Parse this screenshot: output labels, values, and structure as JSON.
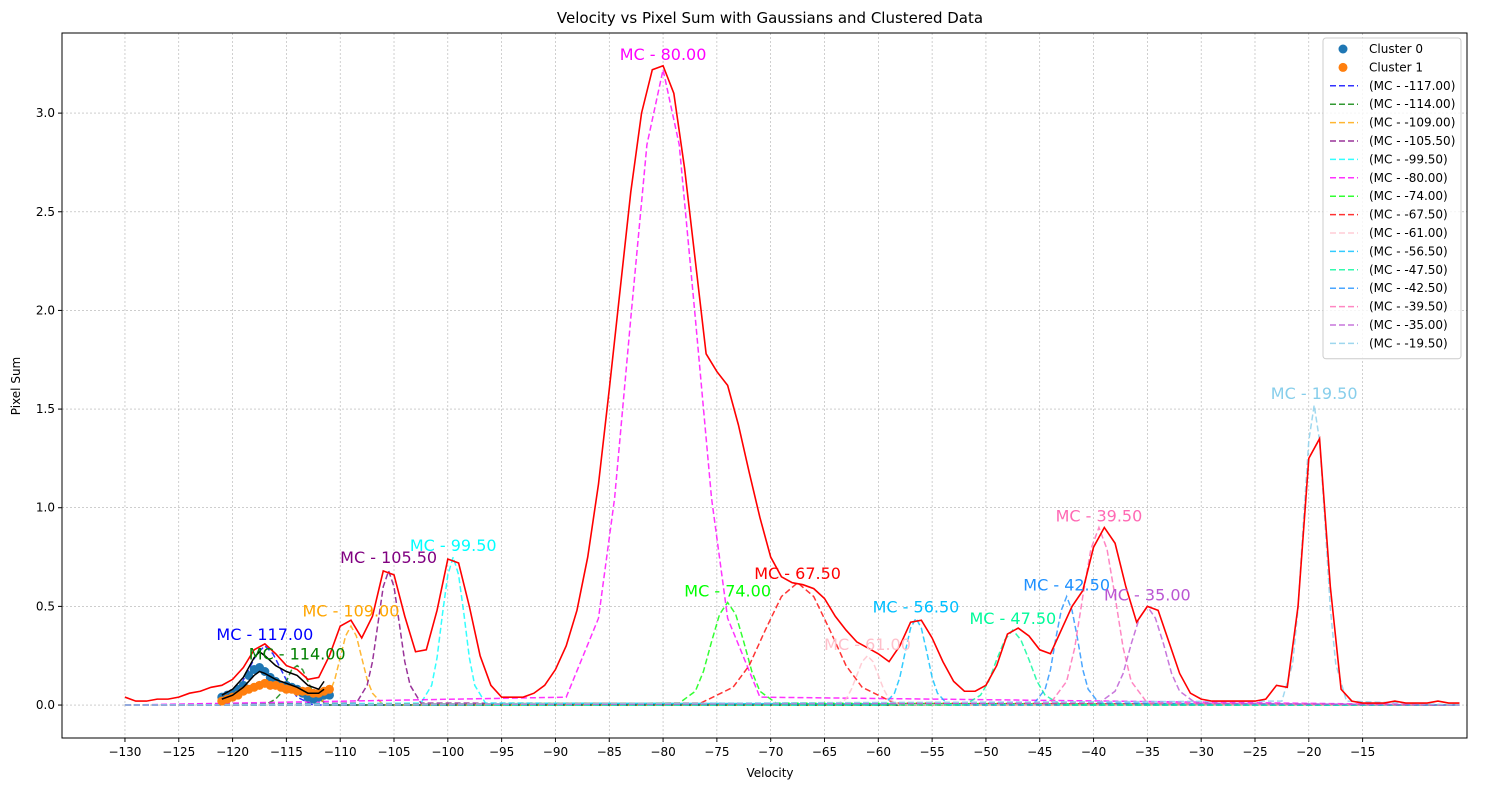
{
  "chart_data": {
    "type": "line",
    "title": "Velocity vs Pixel Sum with Gaussians and Clustered Data",
    "xlabel": "Velocity",
    "ylabel": "Pixel Sum",
    "xlim": [
      -135.85,
      -5.3
    ],
    "ylim": [
      -0.167,
      3.406
    ],
    "grid": true,
    "legend": "upper right",
    "xticks": [
      {
        "value": -130,
        "label": "−130"
      },
      {
        "value": -125,
        "label": "−125"
      },
      {
        "value": -120,
        "label": "−120"
      },
      {
        "value": -115,
        "label": "−115"
      },
      {
        "value": -110,
        "label": "−110"
      },
      {
        "value": -105,
        "label": "−105"
      },
      {
        "value": -100,
        "label": "−100"
      },
      {
        "value": -95,
        "label": "−95"
      },
      {
        "value": -90,
        "label": "−90"
      },
      {
        "value": -85,
        "label": "−85"
      },
      {
        "value": -80,
        "label": "−80"
      },
      {
        "value": -75,
        "label": "−75"
      },
      {
        "value": -70,
        "label": "−70"
      },
      {
        "value": -65,
        "label": "−65"
      },
      {
        "value": -60,
        "label": "−60"
      },
      {
        "value": -55,
        "label": "−55"
      },
      {
        "value": -50,
        "label": "−50"
      },
      {
        "value": -45,
        "label": "−45"
      },
      {
        "value": -40,
        "label": "−40"
      },
      {
        "value": -35,
        "label": "−35"
      },
      {
        "value": -30,
        "label": "−30"
      },
      {
        "value": -25,
        "label": "−25"
      },
      {
        "value": -20,
        "label": "−20"
      },
      {
        "value": -15,
        "label": "−15"
      }
    ],
    "yticks": [
      {
        "value": 0,
        "label": "0.0"
      },
      0.5,
      {
        "value": 1,
        "label": "1.0"
      },
      1.5,
      {
        "value": 2,
        "label": "2.0"
      },
      2.5,
      {
        "value": 3,
        "label": "3.0"
      }
    ],
    "scatter": [
      {
        "name": "Cluster 0",
        "color": "#1f77b4",
        "x": [
          -121,
          -120.5,
          -120,
          -119.5,
          -119,
          -118.5,
          -118,
          -117.5,
          -117,
          -116.5,
          -116,
          -115.5,
          -115,
          -114.5,
          -114,
          -113.5,
          -113,
          -112.5,
          -112,
          -111.5,
          -111
        ],
        "values": [
          0.04,
          0.05,
          0.06,
          0.08,
          0.1,
          0.15,
          0.18,
          0.19,
          0.17,
          0.14,
          0.12,
          0.1,
          0.1,
          0.09,
          0.08,
          0.06,
          0.04,
          0.03,
          0.04,
          0.05,
          0.05
        ]
      },
      {
        "name": "Cluster 1",
        "color": "#ff7f0e",
        "x": [
          -121,
          -120.5,
          -120,
          -119.5,
          -119,
          -118.5,
          -118,
          -117.5,
          -117,
          -116.5,
          -116,
          -115.5,
          -115,
          -114.5,
          -114,
          -113.5,
          -113,
          -112.5,
          -112,
          -111.5,
          -111
        ],
        "values": [
          0.02,
          0.03,
          0.04,
          0.05,
          0.07,
          0.08,
          0.09,
          0.1,
          0.11,
          0.1,
          0.1,
          0.09,
          0.08,
          0.08,
          0.07,
          0.07,
          0.07,
          0.06,
          0.06,
          0.07,
          0.08
        ]
      }
    ],
    "fits": [
      {
        "color": "#000000",
        "x": [
          -121,
          -120,
          -119,
          -118,
          -117.5,
          -117,
          -116,
          -115,
          -114,
          -113,
          -112,
          -111.5
        ],
        "values": [
          0.05,
          0.08,
          0.14,
          0.24,
          0.27,
          0.25,
          0.2,
          0.17,
          0.15,
          0.1,
          0.08,
          0.12
        ]
      },
      {
        "color": "#000000",
        "x": [
          -121,
          -120,
          -119,
          -118,
          -117.5,
          -117,
          -116,
          -115,
          -114,
          -113,
          -112,
          -111.5
        ],
        "values": [
          0.03,
          0.05,
          0.09,
          0.15,
          0.17,
          0.16,
          0.13,
          0.11,
          0.09,
          0.06,
          0.06,
          0.08
        ]
      }
    ],
    "series": [
      {
        "name": "(MC - -117.00)",
        "color": "#0000ff",
        "x": [
          -130,
          -121.5,
          -120,
          -119.25,
          -118.5,
          -117.75,
          -117,
          -116.25,
          -115.5,
          -114.75,
          -114,
          -112.5,
          -6
        ],
        "values": [
          0,
          0,
          0.04,
          0.1,
          0.18,
          0.26,
          0.3,
          0.26,
          0.18,
          0.1,
          0.04,
          0,
          0
        ]
      },
      {
        "name": "(MC - -114.00)",
        "color": "#008000",
        "x": [
          -130,
          -117,
          -116,
          -115.5,
          -115,
          -114.5,
          -114,
          -113.5,
          -113,
          -112.5,
          -112,
          -111,
          -6
        ],
        "values": [
          0,
          0,
          0.03,
          0.06,
          0.12,
          0.18,
          0.2,
          0.18,
          0.12,
          0.06,
          0.03,
          0,
          0
        ]
      },
      {
        "name": "(MC - -109.00)",
        "color": "#ffa500",
        "x": [
          -130,
          -112,
          -111,
          -110.5,
          -110,
          -109.5,
          -109,
          -108.5,
          -108,
          -107.5,
          -107,
          -106,
          -6
        ],
        "values": [
          0,
          0,
          0.06,
          0.13,
          0.24,
          0.35,
          0.4,
          0.35,
          0.24,
          0.13,
          0.06,
          0,
          0
        ]
      },
      {
        "name": "(MC - -105.50)",
        "color": "#800080",
        "x": [
          -130,
          -108.5,
          -107.5,
          -107,
          -106.5,
          -106,
          -105.5,
          -105,
          -104.5,
          -104,
          -103.5,
          -102.5,
          -6
        ],
        "values": [
          0,
          0.01,
          0.1,
          0.22,
          0.41,
          0.6,
          0.68,
          0.6,
          0.41,
          0.22,
          0.1,
          0.01,
          0
        ]
      },
      {
        "name": "(MC - -99.50)",
        "color": "#00ffff",
        "x": [
          -130,
          -102.5,
          -101.5,
          -101,
          -100.5,
          -100,
          -99.5,
          -99,
          -98.5,
          -98,
          -97.5,
          -96.5,
          -6
        ],
        "values": [
          0,
          0.01,
          0.1,
          0.24,
          0.46,
          0.66,
          0.75,
          0.66,
          0.46,
          0.24,
          0.1,
          0.01,
          0
        ]
      },
      {
        "name": "(MC - -80.00)",
        "color": "#ff00ff",
        "x": [
          -130,
          -89,
          -86,
          -84.5,
          -83,
          -81.5,
          -80,
          -78.5,
          -77,
          -75.5,
          -74,
          -71,
          -6
        ],
        "values": [
          0,
          0.04,
          0.44,
          1.05,
          1.96,
          2.84,
          3.22,
          2.84,
          1.96,
          1.05,
          0.44,
          0.04,
          0
        ]
      },
      {
        "name": "(MC - -74.00)",
        "color": "#00ff00",
        "x": [
          -130,
          -78.5,
          -77,
          -76.25,
          -75.5,
          -74.75,
          -74,
          -73.25,
          -72.5,
          -71.75,
          -71,
          -69.5,
          -6
        ],
        "values": [
          0,
          0.01,
          0.07,
          0.17,
          0.32,
          0.46,
          0.52,
          0.46,
          0.32,
          0.17,
          0.07,
          0.01,
          0
        ]
      },
      {
        "name": "(MC - -67.50)",
        "color": "#ff0000",
        "x": [
          -130,
          -76.5,
          -73.5,
          -72,
          -70.5,
          -69,
          -67.5,
          -66,
          -64.5,
          -63,
          -61.5,
          -58.5,
          -6
        ],
        "values": [
          0,
          0.01,
          0.09,
          0.2,
          0.38,
          0.55,
          0.62,
          0.55,
          0.38,
          0.2,
          0.09,
          0.01,
          0
        ]
      },
      {
        "name": "(MC - -61.00)",
        "color": "#ffc0cb",
        "x": [
          -130,
          -64,
          -63,
          -62.5,
          -62,
          -61.5,
          -61,
          -60.5,
          -60,
          -59.5,
          -59,
          -58,
          -6
        ],
        "values": [
          0,
          0,
          0.03,
          0.08,
          0.15,
          0.22,
          0.25,
          0.22,
          0.15,
          0.08,
          0.03,
          0,
          0
        ]
      },
      {
        "name": "(MC - -56.50)",
        "color": "#00bfff",
        "x": [
          -130,
          -59.5,
          -58.5,
          -58,
          -57.5,
          -57,
          -56.5,
          -56,
          -55.5,
          -55,
          -54.5,
          -53.5,
          -6
        ],
        "values": [
          0,
          0,
          0.06,
          0.14,
          0.27,
          0.39,
          0.44,
          0.39,
          0.27,
          0.14,
          0.06,
          0,
          0
        ]
      },
      {
        "name": "(MC - -47.50)",
        "color": "#00fa9a",
        "x": [
          -130,
          -52,
          -50.5,
          -49.75,
          -49,
          -48.25,
          -47.5,
          -46.75,
          -46,
          -45.25,
          -44.5,
          -43,
          -6
        ],
        "values": [
          0,
          0,
          0.05,
          0.12,
          0.23,
          0.33,
          0.38,
          0.33,
          0.23,
          0.12,
          0.05,
          0,
          0
        ]
      },
      {
        "name": "(MC - -42.50)",
        "color": "#1e90ff",
        "x": [
          -130,
          -45.5,
          -44.5,
          -44,
          -43.5,
          -43,
          -42.5,
          -42,
          -41.5,
          -41,
          -40.5,
          -39.5,
          -6
        ],
        "values": [
          0,
          0.01,
          0.08,
          0.18,
          0.34,
          0.48,
          0.55,
          0.48,
          0.34,
          0.18,
          0.08,
          0.01,
          0
        ]
      },
      {
        "name": "(MC - -39.50)",
        "color": "#ff69b4",
        "x": [
          -130,
          -44,
          -42.5,
          -41.75,
          -41,
          -40.25,
          -39.5,
          -38.75,
          -38,
          -37.25,
          -36.5,
          -35,
          -6
        ],
        "values": [
          0,
          0.01,
          0.12,
          0.29,
          0.55,
          0.79,
          0.9,
          0.79,
          0.55,
          0.29,
          0.12,
          0.01,
          0
        ]
      },
      {
        "name": "(MC - -35.00)",
        "color": "#ba55d3",
        "x": [
          -130,
          -39.5,
          -38,
          -37.25,
          -36.5,
          -35.75,
          -35,
          -34.25,
          -33.5,
          -32.75,
          -32,
          -30.5,
          -6
        ],
        "values": [
          0,
          0.01,
          0.07,
          0.16,
          0.31,
          0.44,
          0.5,
          0.44,
          0.31,
          0.16,
          0.07,
          0.01,
          0
        ]
      },
      {
        "name": "(MC - -19.50)",
        "color": "#87ceeb",
        "x": [
          -130,
          -22.5,
          -21.5,
          -21,
          -20.5,
          -20,
          -19.5,
          -19,
          -18.5,
          -18,
          -17.5,
          -16.5,
          -6
        ],
        "values": [
          0,
          0.02,
          0.21,
          0.49,
          0.93,
          1.34,
          1.52,
          1.34,
          0.93,
          0.49,
          0.21,
          0.02,
          0
        ]
      }
    ],
    "total": {
      "color": "#ff0000",
      "x": [
        -130,
        -129,
        -128,
        -127,
        -126,
        -125,
        -124,
        -123,
        -122,
        -121,
        -120,
        -119,
        -118,
        -117,
        -116,
        -115,
        -114,
        -113,
        -112,
        -111,
        -110,
        -109,
        -108,
        -107,
        -106,
        -105,
        -104,
        -103,
        -102,
        -101,
        -100,
        -99,
        -98,
        -97,
        -96,
        -95,
        -94,
        -93,
        -92,
        -91,
        -90,
        -89,
        -88,
        -87,
        -86,
        -85,
        -84,
        -83,
        -82,
        -81,
        -80,
        -79,
        -78,
        -77,
        -76,
        -75,
        -74,
        -73,
        -72,
        -71,
        -70,
        -69,
        -68,
        -67,
        -66,
        -65,
        -64,
        -63,
        -62,
        -61,
        -60,
        -59,
        -58,
        -57,
        -56,
        -55,
        -54,
        -53,
        -52,
        -51,
        -50,
        -49,
        -48,
        -47,
        -46,
        -45,
        -44,
        -43,
        -42,
        -41,
        -40,
        -39,
        -38,
        -37,
        -36,
        -35,
        -34,
        -33,
        -32,
        -31,
        -30,
        -29,
        -28,
        -27,
        -26,
        -25,
        -24,
        -23,
        -22,
        -21,
        -20,
        -19,
        -18,
        -17,
        -16,
        -15,
        -14,
        -13,
        -12,
        -11,
        -10,
        -9,
        -8,
        -7,
        -6
      ],
      "values": [
        0.04,
        0.02,
        0.02,
        0.03,
        0.03,
        0.04,
        0.06,
        0.07,
        0.09,
        0.1,
        0.13,
        0.19,
        0.28,
        0.31,
        0.26,
        0.2,
        0.18,
        0.13,
        0.14,
        0.25,
        0.4,
        0.43,
        0.34,
        0.45,
        0.68,
        0.66,
        0.45,
        0.27,
        0.28,
        0.48,
        0.74,
        0.72,
        0.5,
        0.25,
        0.1,
        0.04,
        0.04,
        0.04,
        0.06,
        0.1,
        0.18,
        0.3,
        0.48,
        0.75,
        1.12,
        1.6,
        2.1,
        2.6,
        3.0,
        3.22,
        3.24,
        3.1,
        2.72,
        2.25,
        1.78,
        1.69,
        1.62,
        1.42,
        1.18,
        0.95,
        0.75,
        0.65,
        0.62,
        0.61,
        0.59,
        0.54,
        0.45,
        0.38,
        0.32,
        0.29,
        0.26,
        0.22,
        0.3,
        0.42,
        0.43,
        0.34,
        0.22,
        0.12,
        0.07,
        0.07,
        0.1,
        0.2,
        0.36,
        0.39,
        0.35,
        0.28,
        0.26,
        0.38,
        0.5,
        0.58,
        0.8,
        0.9,
        0.82,
        0.6,
        0.42,
        0.5,
        0.48,
        0.32,
        0.16,
        0.06,
        0.03,
        0.02,
        0.02,
        0.02,
        0.02,
        0.02,
        0.03,
        0.1,
        0.09,
        0.5,
        1.25,
        1.35,
        0.6,
        0.08,
        0.02,
        0.01,
        0.01,
        0.01,
        0.02,
        0.01,
        0.01,
        0.01,
        0.02,
        0.01,
        0.01
      ]
    },
    "annotations": [
      {
        "text": "MC - 117.00",
        "x": -117,
        "y": 0.33,
        "color": "#0000ff"
      },
      {
        "text": "MC - 114.00",
        "x": -114,
        "y": 0.23,
        "color": "#008000"
      },
      {
        "text": "MC - 109.00",
        "x": -109,
        "y": 0.45,
        "color": "#ffa500"
      },
      {
        "text": "MC - 105.50",
        "x": -105.5,
        "y": 0.72,
        "color": "#800080"
      },
      {
        "text": "MC - 99.50",
        "x": -99.5,
        "y": 0.78,
        "color": "#00ffff"
      },
      {
        "text": "MC - 80.00",
        "x": -80,
        "y": 3.27,
        "color": "#ff00ff"
      },
      {
        "text": "MC - 74.00",
        "x": -74,
        "y": 0.55,
        "color": "#00ff00"
      },
      {
        "text": "MC - 67.50",
        "x": -67.5,
        "y": 0.64,
        "color": "#ff0000"
      },
      {
        "text": "MC - 61.00",
        "x": -61,
        "y": 0.28,
        "color": "#ffc0cb"
      },
      {
        "text": "MC - 56.50",
        "x": -56.5,
        "y": 0.47,
        "color": "#00bfff"
      },
      {
        "text": "MC - 47.50",
        "x": -47.5,
        "y": 0.41,
        "color": "#00fa9a"
      },
      {
        "text": "MC - 42.50",
        "x": -42.5,
        "y": 0.58,
        "color": "#1e90ff"
      },
      {
        "text": "MC - 39.50",
        "x": -39.5,
        "y": 0.93,
        "color": "#ff69b4"
      },
      {
        "text": "MC - 35.00",
        "x": -35,
        "y": 0.53,
        "color": "#ba55d3"
      },
      {
        "text": "MC - 19.50",
        "x": -19.5,
        "y": 1.55,
        "color": "#87ceeb"
      }
    ]
  }
}
